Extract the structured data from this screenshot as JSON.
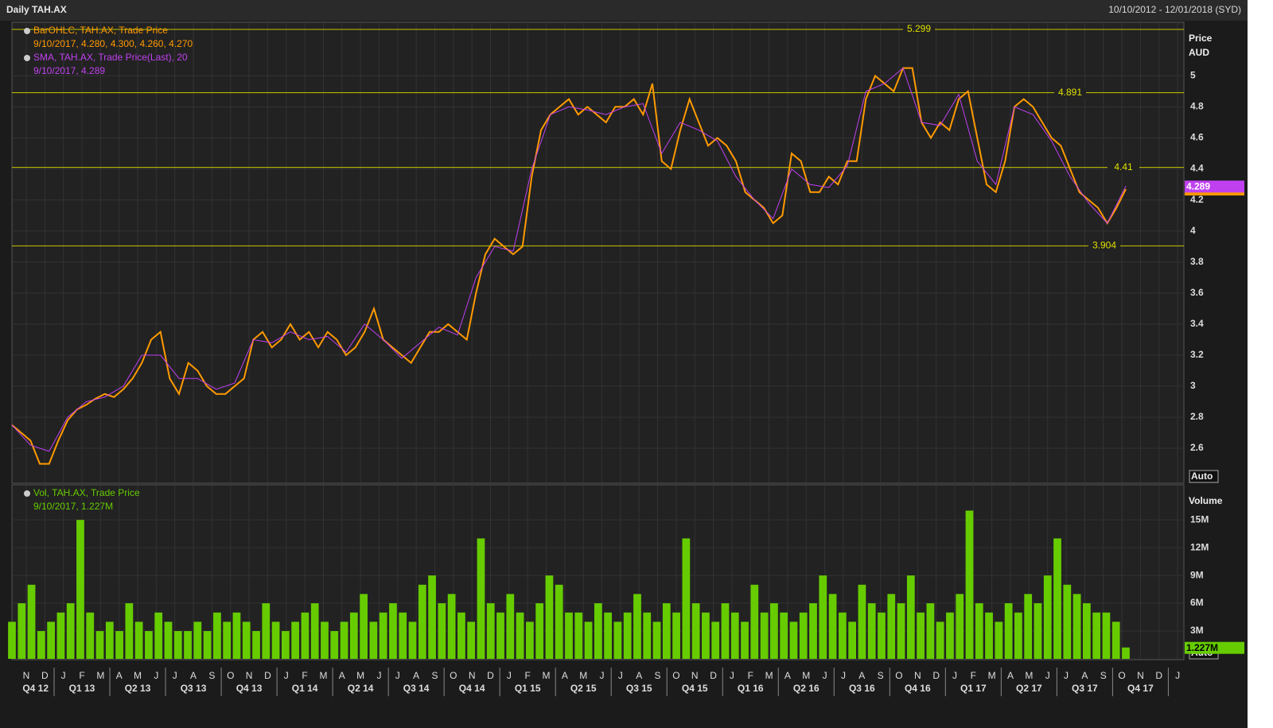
{
  "header": {
    "title": "Daily TAH.AX",
    "range": "10/10/2012 - 12/01/2018 (SYD)"
  },
  "x_axis": {
    "months": [
      "N",
      "D",
      "J",
      "F",
      "M",
      "A",
      "M",
      "J",
      "J",
      "A",
      "S",
      "O",
      "N",
      "D",
      "J",
      "F",
      "M",
      "A",
      "M",
      "J",
      "J",
      "A",
      "S",
      "O",
      "N",
      "D",
      "J",
      "F",
      "M",
      "A",
      "M",
      "J",
      "J",
      "A",
      "S",
      "O",
      "N",
      "D",
      "J",
      "F",
      "M",
      "A",
      "M",
      "J",
      "J",
      "A",
      "S",
      "O",
      "N",
      "D",
      "J",
      "F",
      "M",
      "A",
      "M",
      "J",
      "J",
      "A",
      "S",
      "O",
      "N",
      "D",
      "J"
    ],
    "quarters": [
      "Q4 12",
      "Q1 13",
      "Q2 13",
      "Q3 13",
      "Q4 13",
      "Q1 14",
      "Q2 14",
      "Q3 14",
      "Q4 14",
      "Q1 15",
      "Q2 15",
      "Q3 15",
      "Q4 15",
      "Q1 16",
      "Q2 16",
      "Q3 16",
      "Q4 16",
      "Q1 17",
      "Q2 17",
      "Q3 17",
      "Q4 17"
    ]
  },
  "chart_data": [
    {
      "type": "line",
      "axis_title": [
        "Price",
        "AUD"
      ],
      "scale_mode": "Auto",
      "ylim": [
        2.38,
        5.34
      ],
      "yticks": [
        2.6,
        2.8,
        3,
        3.2,
        3.4,
        3.6,
        3.8,
        4,
        4.2,
        4.4,
        4.6,
        4.8,
        5
      ],
      "grid": true,
      "levels": [
        5.299,
        4.891,
        4.41,
        3.904
      ],
      "series": [
        {
          "name": "BarOHLC, TAH.AX, Trade Price",
          "legend_values": "9/10/2017, 4.280, 4.300, 4.260, 4.270",
          "color": "#ff9a00",
          "last": {
            "value": 4.27,
            "label": "4.270"
          },
          "values": [
            2.75,
            2.7,
            2.65,
            2.5,
            2.5,
            2.65,
            2.78,
            2.85,
            2.88,
            2.92,
            2.95,
            2.93,
            2.98,
            3.05,
            3.15,
            3.3,
            3.35,
            3.05,
            2.95,
            3.15,
            3.1,
            3.0,
            2.95,
            2.95,
            3.0,
            3.05,
            3.3,
            3.35,
            3.25,
            3.3,
            3.4,
            3.3,
            3.35,
            3.25,
            3.35,
            3.3,
            3.2,
            3.25,
            3.35,
            3.5,
            3.3,
            3.25,
            3.2,
            3.15,
            3.25,
            3.35,
            3.35,
            3.4,
            3.35,
            3.3,
            3.6,
            3.85,
            3.95,
            3.9,
            3.85,
            3.9,
            4.35,
            4.65,
            4.75,
            4.8,
            4.85,
            4.75,
            4.8,
            4.75,
            4.7,
            4.8,
            4.8,
            4.85,
            4.75,
            4.95,
            4.45,
            4.4,
            4.65,
            4.85,
            4.7,
            4.55,
            4.6,
            4.55,
            4.45,
            4.25,
            4.2,
            4.15,
            4.05,
            4.1,
            4.5,
            4.45,
            4.25,
            4.25,
            4.35,
            4.3,
            4.45,
            4.45,
            4.85,
            5.0,
            4.95,
            4.9,
            5.05,
            5.05,
            4.7,
            4.6,
            4.7,
            4.65,
            4.85,
            4.9,
            4.6,
            4.3,
            4.25,
            4.45,
            4.8,
            4.85,
            4.8,
            4.7,
            4.6,
            4.55,
            4.4,
            4.25,
            4.2,
            4.15,
            4.05,
            4.15,
            4.27
          ]
        },
        {
          "name": "SMA, TAH.AX, Trade Price(Last),  20",
          "legend_values": "9/10/2017, 4.289",
          "color": "#c040f0",
          "last": 4.289,
          "values": [
            2.75,
            2.62,
            2.58,
            2.8,
            2.9,
            2.93,
            3.0,
            3.2,
            3.2,
            3.05,
            3.05,
            2.98,
            3.02,
            3.3,
            3.28,
            3.35,
            3.3,
            3.32,
            3.22,
            3.4,
            3.3,
            3.18,
            3.28,
            3.38,
            3.33,
            3.7,
            3.9,
            3.87,
            4.4,
            4.75,
            4.8,
            4.78,
            4.75,
            4.8,
            4.82,
            4.5,
            4.7,
            4.65,
            4.58,
            4.35,
            4.2,
            4.08,
            4.4,
            4.3,
            4.28,
            4.42,
            4.9,
            4.95,
            5.05,
            4.7,
            4.68,
            4.88,
            4.45,
            4.3,
            4.8,
            4.75,
            4.58,
            4.35,
            4.18,
            4.05,
            4.289
          ]
        }
      ]
    },
    {
      "type": "bar",
      "axis_title": [
        "Volume"
      ],
      "scale_mode": "Auto",
      "ylim": [
        0,
        18.7
      ],
      "yticks": [
        {
          "value": 3,
          "label": "3M"
        },
        {
          "value": 6,
          "label": "6M"
        },
        {
          "value": 9,
          "label": "9M"
        },
        {
          "value": 12,
          "label": "12M"
        },
        {
          "value": 15,
          "label": "15M"
        }
      ],
      "grid": true,
      "series": [
        {
          "name": "Vol, TAH.AX, Trade Price",
          "legend_values": "9/10/2017, 1.227M",
          "color": "#66cc00",
          "last": {
            "value": 1.227,
            "label": "1.227M"
          },
          "values": [
            4,
            6,
            8,
            3,
            4,
            5,
            6,
            15,
            5,
            3,
            4,
            3,
            6,
            4,
            3,
            5,
            4,
            3,
            3,
            4,
            3,
            5,
            4,
            5,
            4,
            3,
            6,
            4,
            3,
            4,
            5,
            6,
            4,
            3,
            4,
            5,
            7,
            4,
            5,
            6,
            5,
            4,
            8,
            9,
            6,
            7,
            5,
            4,
            13,
            6,
            5,
            7,
            5,
            4,
            6,
            9,
            8,
            5,
            5,
            4,
            6,
            5,
            4,
            5,
            7,
            5,
            4,
            6,
            5,
            13,
            6,
            5,
            4,
            6,
            5,
            4,
            8,
            5,
            6,
            5,
            4,
            5,
            6,
            9,
            7,
            5,
            4,
            8,
            6,
            5,
            7,
            6,
            9,
            5,
            6,
            4,
            5,
            7,
            16,
            6,
            5,
            4,
            6,
            5,
            7,
            6,
            9,
            13,
            8,
            7,
            6,
            5,
            5,
            4,
            1.227
          ]
        }
      ]
    }
  ]
}
